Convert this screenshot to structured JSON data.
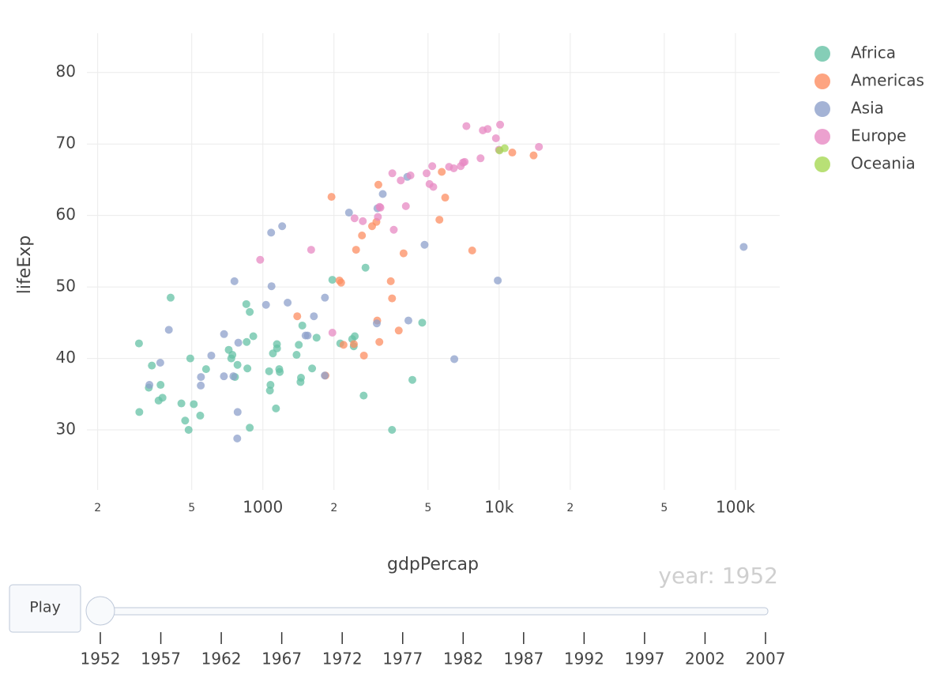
{
  "chart_data": {
    "type": "scatter",
    "x_label": "gdpPercap",
    "y_label": "lifeExp",
    "xscale": "log",
    "grid": true,
    "legend": "top-right",
    "xlim": [
      180,
      154000
    ],
    "ylim": [
      21.6,
      85.5
    ],
    "xticks": [
      {
        "value": 200,
        "label": "2"
      },
      {
        "value": 500,
        "label": "5"
      },
      1000,
      {
        "value": 2000,
        "label": "2"
      },
      {
        "value": 5000,
        "label": "5"
      },
      {
        "value": 10000,
        "label": "10k"
      },
      {
        "value": 20000,
        "label": "2"
      },
      {
        "value": 50000,
        "label": "5"
      },
      {
        "value": 100000,
        "label": "100k"
      }
    ],
    "yticks": [
      30,
      40,
      50,
      60,
      70,
      80
    ],
    "series": [
      {
        "name": "Africa",
        "color": "#66c2a5",
        "x": [
          2449,
          3521,
          1063,
          851,
          543,
          339,
          1173,
          1071,
          1179,
          1103,
          781,
          2126,
          1389,
          2670,
          1419,
          376,
          329,
          362,
          4293,
          485,
          911,
          510,
          300,
          854,
          299,
          575,
          2388,
          1443,
          369,
          452,
          743,
          1968,
          1688,
          469,
          2424,
          762,
          1077,
          2719,
          493,
          880,
          1450,
          880,
          1136,
          4725,
          1616,
          1148,
          717,
          860,
          1469,
          735,
          1147,
          407
        ],
        "values": [
          43.1,
          30.0,
          38.2,
          47.6,
          32.0,
          39.0,
          38.5,
          35.5,
          38.1,
          40.7,
          39.1,
          42.1,
          40.5,
          34.8,
          41.9,
          34.5,
          35.9,
          34.1,
          37.0,
          30.0,
          43.1,
          33.6,
          32.5,
          42.3,
          42.1,
          38.5,
          42.7,
          36.7,
          36.3,
          33.7,
          40.5,
          51.0,
          42.9,
          31.3,
          41.7,
          37.4,
          36.3,
          52.7,
          40.0,
          46.5,
          37.3,
          30.3,
          33.0,
          45.0,
          38.6,
          41.4,
          41.2,
          38.6,
          44.6,
          40.0,
          42.0,
          48.5
        ]
      },
      {
        "name": "Americas",
        "color": "#fc8d62",
        "x": [
          5911,
          2677,
          2109,
          11367,
          3940,
          2144,
          2627,
          5587,
          1398,
          3522,
          3048,
          2428,
          1840,
          2195,
          2899,
          3478,
          3112,
          2480,
          1952,
          3759,
          3082,
          3024,
          13990,
          5717,
          7690
        ],
        "values": [
          62.5,
          40.4,
          50.9,
          68.8,
          54.7,
          50.6,
          57.2,
          59.4,
          45.9,
          48.4,
          45.3,
          42.0,
          37.6,
          41.9,
          58.5,
          50.8,
          42.3,
          55.2,
          62.6,
          43.9,
          64.3,
          59.1,
          68.4,
          66.1,
          55.1
        ]
      },
      {
        "name": "Asia",
        "color": "#8da0cb",
        "x": [
          779,
          9867,
          684,
          368,
          400,
          3054,
          547,
          750,
          3035,
          4130,
          4087,
          3217,
          1547,
          1088,
          1031,
          108382,
          4835,
          1831,
          787,
          331,
          546,
          1828,
          685,
          1273,
          6460,
          2315,
          1084,
          1644,
          1207,
          758,
          605,
          1516,
          782
        ],
        "values": [
          28.8,
          50.9,
          37.5,
          39.4,
          44.0,
          61.0,
          37.4,
          37.5,
          44.9,
          45.3,
          65.4,
          63.0,
          43.2,
          50.1,
          47.5,
          55.6,
          55.9,
          48.5,
          42.2,
          36.3,
          36.2,
          37.6,
          43.4,
          47.8,
          39.9,
          60.4,
          57.6,
          45.9,
          58.5,
          50.8,
          40.4,
          43.2,
          32.5
        ]
      },
      {
        "name": "Europe",
        "color": "#e78ac3",
        "x": [
          1601,
          6137,
          8343,
          974,
          2444,
          3119,
          6876,
          9692,
          6425,
          7030,
          7144,
          3531,
          5264,
          7268,
          5211,
          4931,
          2648,
          8942,
          10095,
          4029,
          3068,
          3145,
          3581,
          5074,
          4215,
          3834,
          8528,
          14734,
          1969,
          9980
        ],
        "values": [
          55.2,
          66.8,
          68.0,
          53.8,
          59.6,
          61.2,
          66.9,
          70.8,
          66.6,
          67.4,
          67.5,
          65.9,
          64.0,
          72.5,
          66.9,
          65.9,
          59.2,
          72.1,
          72.7,
          61.3,
          59.8,
          61.1,
          58.0,
          64.4,
          65.6,
          64.9,
          71.9,
          69.6,
          43.6,
          69.2
        ]
      },
      {
        "name": "Oceania",
        "color": "#a6d854",
        "x": [
          10040,
          10557
        ],
        "values": [
          69.1,
          69.4
        ]
      }
    ]
  },
  "slider": {
    "current": "year: 1952",
    "steps": [
      1952,
      1957,
      1962,
      1967,
      1972,
      1977,
      1982,
      1987,
      1992,
      1997,
      2002,
      2007
    ]
  },
  "play_button": "Play"
}
